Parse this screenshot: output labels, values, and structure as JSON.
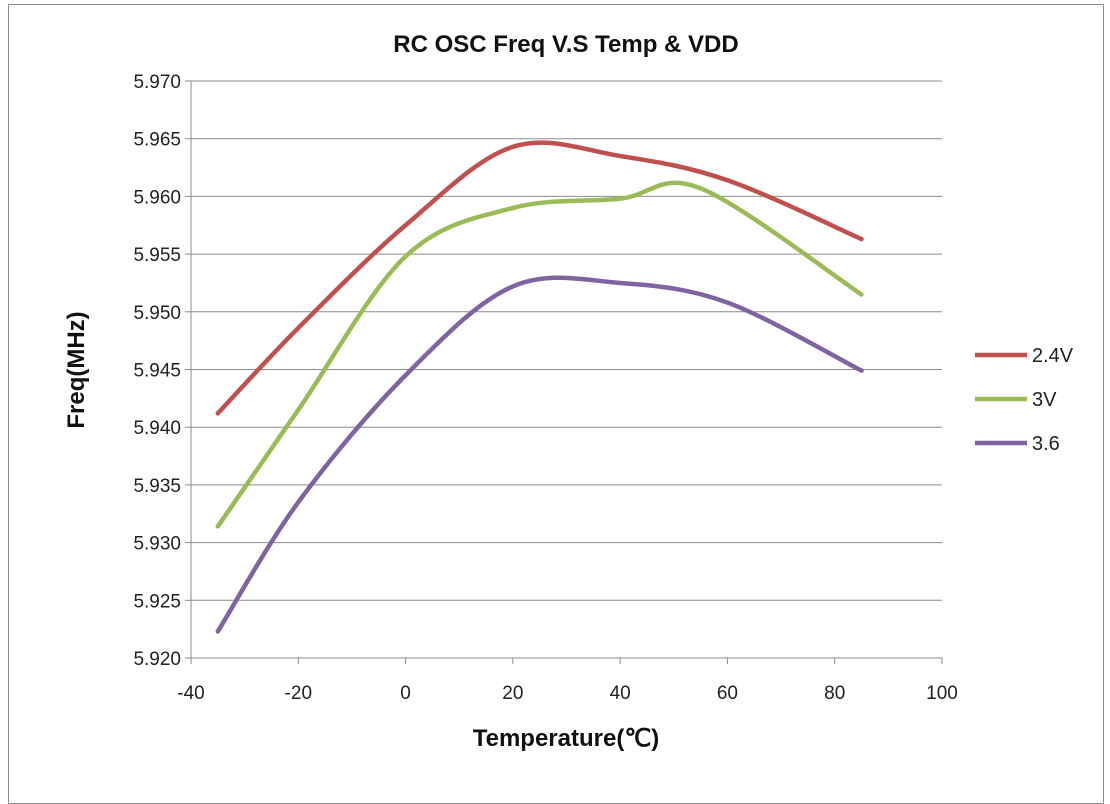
{
  "chart_data": {
    "type": "line",
    "title": "RC OSC Freq V.S Temp & VDD",
    "xlabel": "Temperature(℃)",
    "ylabel": "Freq(MHz)",
    "xlim": [
      -40,
      100
    ],
    "ylim": [
      5.92,
      5.97
    ],
    "x_ticks": [
      "-40",
      "-20",
      "0",
      "20",
      "40",
      "60",
      "80",
      "100"
    ],
    "y_ticks": [
      "5.920",
      "5.925",
      "5.930",
      "5.935",
      "5.940",
      "5.945",
      "5.950",
      "5.955",
      "5.960",
      "5.965",
      "5.970"
    ],
    "grid": "horizontal",
    "legend_position": "right",
    "series": [
      {
        "name": "2.4V",
        "color": "#c0504d",
        "points": [
          [
            -35,
            5.9412
          ],
          [
            -20,
            5.9486
          ],
          [
            0,
            5.9575
          ],
          [
            20,
            5.9643
          ],
          [
            40,
            5.9635
          ],
          [
            60,
            5.9614
          ],
          [
            85,
            5.9563
          ]
        ]
      },
      {
        "name": "3V",
        "color": "#9bbb59",
        "points": [
          [
            -35,
            5.9314
          ],
          [
            -20,
            5.9415
          ],
          [
            0,
            5.9548
          ],
          [
            20,
            5.959
          ],
          [
            40,
            5.9598
          ],
          [
            55,
            5.9607
          ],
          [
            85,
            5.9515
          ]
        ]
      },
      {
        "name": "3.6",
        "color": "#8064a2",
        "points": [
          [
            -35,
            5.9223
          ],
          [
            -20,
            5.9335
          ],
          [
            0,
            5.9445
          ],
          [
            20,
            5.9522
          ],
          [
            40,
            5.9525
          ],
          [
            60,
            5.9508
          ],
          [
            85,
            5.9449
          ]
        ]
      }
    ]
  }
}
